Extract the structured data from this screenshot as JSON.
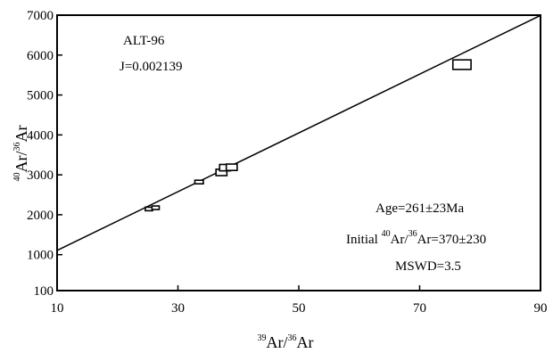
{
  "chart_data": {
    "type": "scatter",
    "title": "",
    "xlabel": {
      "sup1": "39",
      "base1": "Ar",
      "sep": "/",
      "sup2": "36",
      "base2": "Ar"
    },
    "ylabel": {
      "sup1": "40",
      "base1": "Ar",
      "sep": "/",
      "sup2": "36",
      "base2": "Ar"
    },
    "xlim": [
      10,
      90
    ],
    "ylim": [
      100,
      7000
    ],
    "x_ticks": [
      10,
      30,
      50,
      70,
      90
    ],
    "y_ticks": [
      100,
      1000,
      2000,
      3000,
      4000,
      5000,
      6000,
      7000
    ],
    "grid": false,
    "marker": "square",
    "points": [
      {
        "x": 25.2,
        "y": 2160,
        "xerr": 0.6,
        "yerr": 30
      },
      {
        "x": 26.3,
        "y": 2190,
        "xerr": 0.6,
        "yerr": 30
      },
      {
        "x": 33.5,
        "y": 2820,
        "xerr": 0.7,
        "yerr": 45
      },
      {
        "x": 37.2,
        "y": 3060,
        "xerr": 0.9,
        "yerr": 80
      },
      {
        "x": 37.8,
        "y": 3180,
        "xerr": 0.9,
        "yerr": 80
      },
      {
        "x": 38.9,
        "y": 3190,
        "xerr": 0.9,
        "yerr": 80
      },
      {
        "x": 77.0,
        "y": 5760,
        "xerr": 1.5,
        "yerr": 120
      }
    ],
    "isochron": {
      "intercept": 370,
      "slope": 73.6
    },
    "annotations": {
      "sample": "ALT-96",
      "j_value": "J=0.002139",
      "age": "Age=261±23Ma",
      "initial_prefix": "Initial ",
      "initial_sup1": "40",
      "initial_mid": "Ar/",
      "initial_sup2": "36",
      "initial_suffix": "Ar=370±230",
      "mswd": "MSWD=3.5"
    }
  }
}
